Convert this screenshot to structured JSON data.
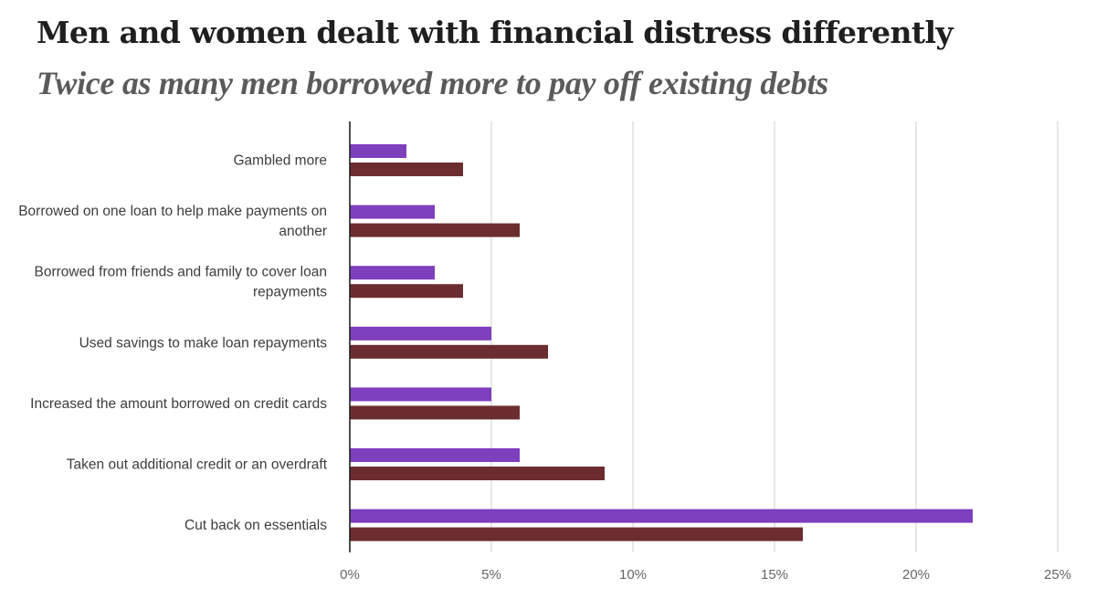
{
  "header": {
    "title": "Men and women dealt with financial distress differently",
    "subtitle": "Twice as many men borrowed more to pay off existing debts"
  },
  "chart_data": {
    "type": "bar",
    "orientation": "horizontal",
    "title": "Men and women dealt with financial distress differently",
    "subtitle": "Twice as many men borrowed more to pay off existing debts",
    "xlabel": "",
    "ylabel": "",
    "categories": [
      "Gambled more",
      "Borrowed on one loan to help make payments on another",
      "Borrowed from friends and family to cover loan repayments",
      "Used savings to make loan repayments",
      "Increased the amount borrowed on credit cards",
      "Taken out additional credit or an overdraft",
      "Cut back on essentials"
    ],
    "category_lines": [
      [
        "Gambled more"
      ],
      [
        "Borrowed on one loan to help make payments on",
        "another"
      ],
      [
        "Borrowed from friends and family to cover loan",
        "repayments"
      ],
      [
        "Used savings to make loan repayments"
      ],
      [
        "Increased the amount borrowed on credit cards"
      ],
      [
        "Taken out additional credit or an overdraft"
      ],
      [
        "Cut back on essentials"
      ]
    ],
    "series": [
      {
        "color": "#7e3fbd",
        "values": [
          2,
          3,
          3,
          5,
          5,
          6,
          22
        ]
      },
      {
        "color": "#6b2d30",
        "values": [
          4,
          6,
          4,
          7,
          6,
          9,
          16
        ]
      }
    ],
    "xlim": [
      0,
      25
    ],
    "x_ticks": [
      0,
      5,
      10,
      15,
      20,
      25
    ],
    "x_tick_labels": [
      "0%",
      "5%",
      "10%",
      "15%",
      "20%",
      "25%"
    ],
    "grid": true,
    "legend": "none"
  }
}
